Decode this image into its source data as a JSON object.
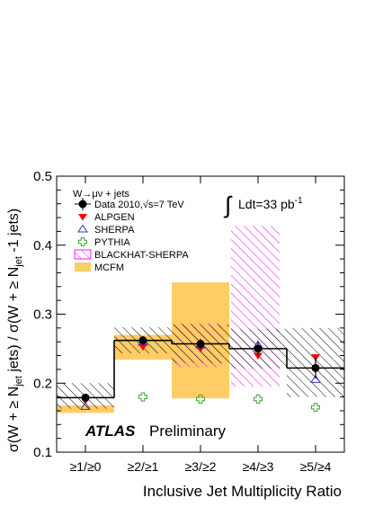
{
  "chart_data": {
    "type": "scatter",
    "title": "",
    "xlabel": "Inclusive Jet Multiplicity Ratio",
    "ylabel_parts": [
      "σ(W + ≥ N",
      "jet",
      " jets) / σ(W + ≥ N",
      "jet",
      " -1 jets)"
    ],
    "ylim": [
      0.1,
      0.5
    ],
    "yticks": [
      "0.1",
      "0.2",
      "0.3",
      "0.4",
      "0.5"
    ],
    "categories": [
      "≥1/≥0",
      "≥2/≥1",
      "≥3/≥2",
      "≥4/≥3",
      "≥5/≥4"
    ],
    "legend_header": "W→μν + jets",
    "luminosity": {
      "prefix": "∫",
      "text": "Ldt=33 pb",
      "exponent": "-1"
    },
    "experiment_label": "ATLAS",
    "experiment_status": "Preliminary",
    "series": [
      {
        "name": "Data 2010,√s=7 TeV",
        "marker": "circle",
        "color": "#000000",
        "values": [
          0.179,
          0.262,
          0.257,
          0.25,
          0.222
        ],
        "errors": [
          0.004,
          0.006,
          0.007,
          0.01,
          0.015
        ],
        "syst_band": [
          [
            0.163,
            0.2
          ],
          [
            0.243,
            0.281
          ],
          [
            0.229,
            0.285
          ],
          [
            0.221,
            0.279
          ],
          [
            0.18,
            0.28
          ]
        ]
      },
      {
        "name": "ALPGEN",
        "marker": "triangle-down",
        "color": "#ff0000",
        "values": [
          0.175,
          0.253,
          0.25,
          0.24,
          0.238
        ]
      },
      {
        "name": "SHERPA",
        "marker": "triangle-up-open",
        "color": "#3333cc",
        "values": [
          0.166,
          0.259,
          0.255,
          0.255,
          0.205
        ]
      },
      {
        "name": "PYTHIA",
        "marker": "cross-open",
        "color": "#33aa33",
        "values": [
          null,
          0.18,
          0.177,
          0.177,
          0.165
        ]
      },
      {
        "name": "BLACKHAT-SHERPA",
        "marker": "hatched-box",
        "color": "#ee22ee",
        "bands": [
          null,
          null,
          [
            0.223,
            0.287
          ],
          [
            0.195,
            0.428
          ],
          null
        ]
      },
      {
        "name": "MCFM",
        "marker": "filled-box",
        "color": "#ffcc66",
        "bands": [
          [
            0.157,
            0.168
          ],
          [
            0.234,
            0.27
          ],
          [
            0.178,
            0.346
          ],
          null,
          null
        ]
      }
    ]
  }
}
